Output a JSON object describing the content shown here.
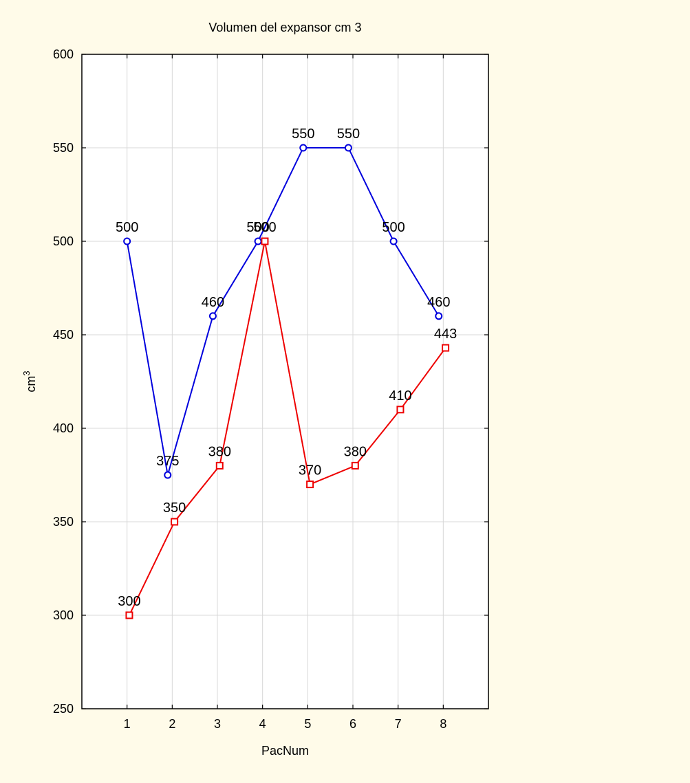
{
  "chart_data": {
    "type": "line",
    "title": "Volumen del expansor cm 3",
    "xlabel": "PacNum",
    "ylabel_base": "cm",
    "ylabel_sup": "3",
    "x": [
      1,
      2,
      3,
      4,
      5,
      6,
      7,
      8
    ],
    "xlim": [
      0,
      9
    ],
    "ylim": [
      250,
      600
    ],
    "yticks": [
      250,
      300,
      350,
      400,
      450,
      500,
      550,
      600
    ],
    "grid": true,
    "legend": "none",
    "series": [
      {
        "color": "#0000dd",
        "marker": "circle",
        "x": [
          1,
          1.9,
          2.9,
          3.9,
          4.9,
          5.9,
          6.9,
          7.9
        ],
        "values": [
          500,
          375,
          460,
          500,
          550,
          550,
          500,
          460
        ]
      },
      {
        "color": "#ee0000",
        "marker": "square",
        "x": [
          1.05,
          2.05,
          3.05,
          4.05,
          5.05,
          6.05,
          7.05,
          8.05
        ],
        "values": [
          300,
          350,
          380,
          500,
          370,
          380,
          410,
          443
        ]
      }
    ]
  }
}
